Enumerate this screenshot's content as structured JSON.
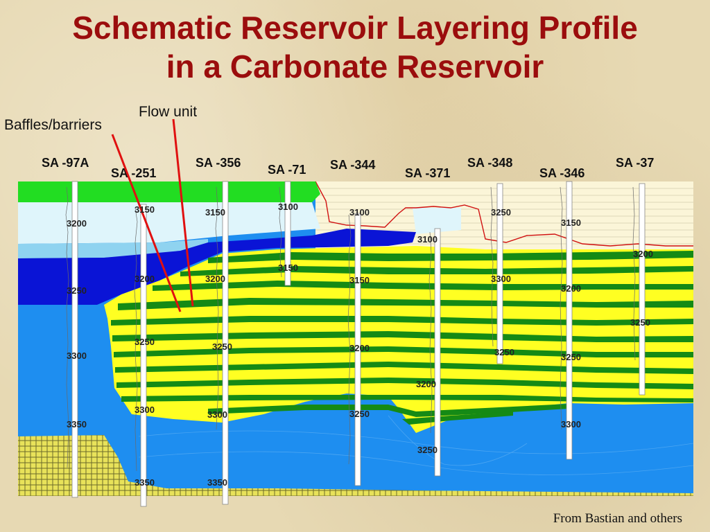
{
  "title_line1": "Schematic Reservoir Layering Profile",
  "title_line2": "in a Carbonate Reservoir",
  "annotations": {
    "flow_unit": "Flow unit",
    "baffles": "Baffles/barriers"
  },
  "credit": "From Bastian and others",
  "wells": [
    {
      "name": "SA -97A",
      "depths": [
        "3200",
        "3250",
        "3300",
        "3350"
      ]
    },
    {
      "name": "SA -251",
      "depths": [
        "3150",
        "3200",
        "3250",
        "3300",
        "3350"
      ]
    },
    {
      "name": "SA -356",
      "depths": [
        "3150",
        "3200",
        "3250",
        "3300",
        "3350"
      ]
    },
    {
      "name": "SA -71",
      "depths": [
        "3100",
        "3150"
      ]
    },
    {
      "name": "SA -344",
      "depths": [
        "3100",
        "3150",
        "3200",
        "3250"
      ]
    },
    {
      "name": "SA -371",
      "depths": [
        "3100",
        "3200",
        "3250"
      ]
    },
    {
      "name": "SA -348",
      "depths": [
        "3250",
        "3300",
        "3250"
      ]
    },
    {
      "name": "SA -346",
      "depths": [
        "3150",
        "3200",
        "3250",
        "3300"
      ]
    },
    {
      "name": "SA -37",
      "depths": [
        "3200",
        "3250"
      ]
    }
  ],
  "colors": {
    "title": "#9b0d0d",
    "top_green": "#22dd22",
    "light_cyan": "#dff5fb",
    "sky_blue": "#8fd3f0",
    "deep_blue": "#0a14d6",
    "royal_blue": "#1e8ef0",
    "reservoir_yellow": "#ffff22",
    "flow_green": "#158a15",
    "arrow_red": "#e01010",
    "evaporite_cream": "#fbf5d8"
  }
}
